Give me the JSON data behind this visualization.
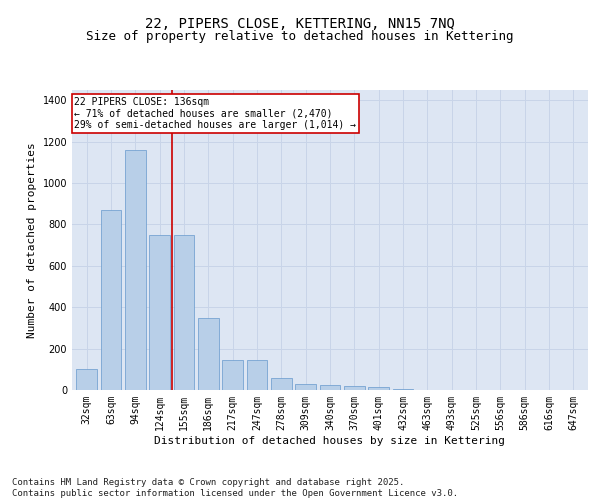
{
  "title1": "22, PIPERS CLOSE, KETTERING, NN15 7NQ",
  "title2": "Size of property relative to detached houses in Kettering",
  "xlabel": "Distribution of detached houses by size in Kettering",
  "ylabel": "Number of detached properties",
  "categories": [
    "32sqm",
    "63sqm",
    "94sqm",
    "124sqm",
    "155sqm",
    "186sqm",
    "217sqm",
    "247sqm",
    "278sqm",
    "309sqm",
    "340sqm",
    "370sqm",
    "401sqm",
    "432sqm",
    "463sqm",
    "493sqm",
    "525sqm",
    "556sqm",
    "586sqm",
    "616sqm",
    "647sqm"
  ],
  "values": [
    100,
    870,
    1160,
    750,
    750,
    350,
    145,
    145,
    60,
    30,
    25,
    20,
    15,
    5,
    0,
    0,
    0,
    0,
    0,
    0,
    0
  ],
  "bar_color": "#b8cfe8",
  "bar_edge_color": "#6699cc",
  "vline_x": 3.5,
  "vline_color": "#cc0000",
  "annotation_box_text": "22 PIPERS CLOSE: 136sqm\n← 71% of detached houses are smaller (2,470)\n29% of semi-detached houses are larger (1,014) →",
  "annotation_box_color": "#cc0000",
  "annotation_bg": "#ffffff",
  "ylim": [
    0,
    1450
  ],
  "yticks": [
    0,
    200,
    400,
    600,
    800,
    1000,
    1200,
    1400
  ],
  "grid_color": "#c8d4e8",
  "bg_color": "#dde6f3",
  "footer": "Contains HM Land Registry data © Crown copyright and database right 2025.\nContains public sector information licensed under the Open Government Licence v3.0.",
  "title_fontsize": 10,
  "subtitle_fontsize": 9,
  "axis_label_fontsize": 8,
  "tick_fontsize": 7,
  "footer_fontsize": 6.5,
  "annot_fontsize": 7
}
